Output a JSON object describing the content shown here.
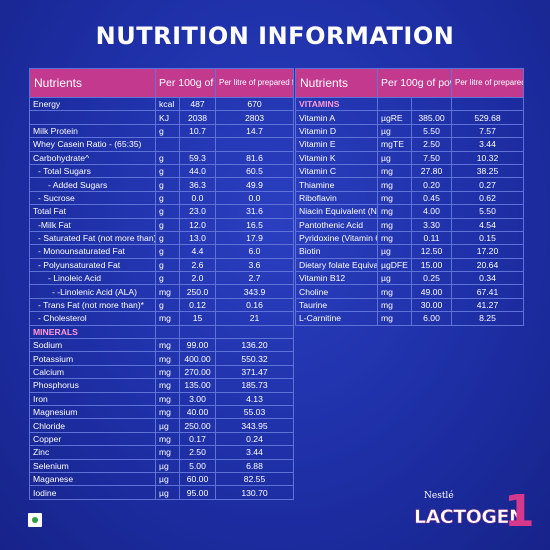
{
  "title": "NUTRITION INFORMATION",
  "table_headers": {
    "nutrients": "Nutrients",
    "per_powder": "Per 100g of powder",
    "per_formula": "Per litre of prepared formula"
  },
  "left_table": {
    "rows": [
      {
        "name": "Energy",
        "unit": "kcal",
        "powder": "487",
        "formula": "670",
        "style": ""
      },
      {
        "name": "",
        "unit": "KJ",
        "powder": "2038",
        "formula": "2803",
        "style": ""
      },
      {
        "name": "Milk Protein",
        "unit": "g",
        "powder": "10.7",
        "formula": "14.7",
        "style": ""
      },
      {
        "name": "Whey Casein Ratio - (65:35)",
        "unit": "",
        "powder": "",
        "formula": "",
        "style": ""
      },
      {
        "name": "Carbohydrate^",
        "unit": "g",
        "powder": "59.3",
        "formula": "81.6",
        "style": ""
      },
      {
        "name": "- Total Sugars",
        "unit": "g",
        "powder": "44.0",
        "formula": "60.5",
        "style": "l1"
      },
      {
        "name": "- Added Sugars",
        "unit": "g",
        "powder": "36.3",
        "formula": "49.9",
        "style": "l3"
      },
      {
        "name": "- Sucrose",
        "unit": "g",
        "powder": "0.0",
        "formula": "0.0",
        "style": "l1"
      },
      {
        "name": "Total Fat",
        "unit": "g",
        "powder": "23.0",
        "formula": "31.6",
        "style": ""
      },
      {
        "name": "-Milk Fat",
        "unit": "g",
        "powder": "12.0",
        "formula": "16.5",
        "style": "l1"
      },
      {
        "name": "- Saturated Fat (not more than)",
        "unit": "g",
        "powder": "13.0",
        "formula": "17.9",
        "style": "l1"
      },
      {
        "name": "- Monounsaturated Fat",
        "unit": "g",
        "powder": "4.4",
        "formula": "6.0",
        "style": "l1"
      },
      {
        "name": "- Polyunsaturated Fat",
        "unit": "g",
        "powder": "2.6",
        "formula": "3.6",
        "style": "l1"
      },
      {
        "name": "- Linoleic Acid",
        "unit": "g",
        "powder": "2.0",
        "formula": "2.7",
        "style": "l3"
      },
      {
        "name": "- -Linolenic Acid (ALA)",
        "unit": "mg",
        "powder": "250.0",
        "formula": "343.9",
        "style": "l4"
      },
      {
        "name": "- Trans Fat (not more than)*",
        "unit": "g",
        "powder": "0.12",
        "formula": "0.16",
        "style": "l1"
      },
      {
        "name": "- Cholesterol",
        "unit": "mg",
        "powder": "15",
        "formula": "21",
        "style": "l1"
      },
      {
        "name": "MINERALS",
        "unit": "",
        "powder": "",
        "formula": "",
        "style": "sec"
      },
      {
        "name": "Sodium",
        "unit": "mg",
        "powder": "99.00",
        "formula": "136.20",
        "style": ""
      },
      {
        "name": "Potassium",
        "unit": "mg",
        "powder": "400.00",
        "formula": "550.32",
        "style": ""
      },
      {
        "name": "Calcium",
        "unit": "mg",
        "powder": "270.00",
        "formula": "371.47",
        "style": ""
      },
      {
        "name": "Phosphorus",
        "unit": "mg",
        "powder": "135.00",
        "formula": "185.73",
        "style": ""
      },
      {
        "name": "Iron",
        "unit": "mg",
        "powder": "3.00",
        "formula": "4.13",
        "style": ""
      },
      {
        "name": "Magnesium",
        "unit": "mg",
        "powder": "40.00",
        "formula": "55.03",
        "style": ""
      },
      {
        "name": "Chloride",
        "unit": "µg",
        "powder": "250.00",
        "formula": "343.95",
        "style": ""
      },
      {
        "name": "Copper",
        "unit": "mg",
        "powder": "0.17",
        "formula": "0.24",
        "style": ""
      },
      {
        "name": "Zinc",
        "unit": "mg",
        "powder": "2.50",
        "formula": "3.44",
        "style": ""
      },
      {
        "name": "Selenium",
        "unit": "µg",
        "powder": "5.00",
        "formula": "6.88",
        "style": ""
      },
      {
        "name": "Maganese",
        "unit": "µg",
        "powder": "60.00",
        "formula": "82.55",
        "style": ""
      },
      {
        "name": "Iodine",
        "unit": "µg",
        "powder": "95.00",
        "formula": "130.70",
        "style": ""
      }
    ]
  },
  "right_table": {
    "rows": [
      {
        "name": "VITAMINS",
        "unit": "",
        "powder": "",
        "formula": "",
        "style": "sec"
      },
      {
        "name": "Vitamin A",
        "unit": "µgRE",
        "powder": "385.00",
        "formula": "529.68",
        "style": ""
      },
      {
        "name": "Vitamin D",
        "unit": "µg",
        "powder": "5.50",
        "formula": "7.57",
        "style": ""
      },
      {
        "name": "Vitamin E",
        "unit": "mgTE",
        "powder": "2.50",
        "formula": "3.44",
        "style": ""
      },
      {
        "name": "Vitamin K",
        "unit": "µg",
        "powder": "7.50",
        "formula": "10.32",
        "style": ""
      },
      {
        "name": "Vitamin C",
        "unit": "mg",
        "powder": "27.80",
        "formula": "38.25",
        "style": ""
      },
      {
        "name": "Thiamine",
        "unit": "mg",
        "powder": "0.20",
        "formula": "0.27",
        "style": ""
      },
      {
        "name": "Riboflavin",
        "unit": "mg",
        "powder": "0.45",
        "formula": "0.62",
        "style": ""
      },
      {
        "name": "Niacin Equivalent (Niacin)",
        "unit": "mg",
        "powder": "4.00",
        "formula": "5.50",
        "style": "tall"
      },
      {
        "name": "Pantothenic Acid",
        "unit": "mg",
        "powder": "3.30",
        "formula": "4.54",
        "style": ""
      },
      {
        "name": "Pyridoxine (Vitamin 6)",
        "unit": "mg",
        "powder": "0.11",
        "formula": "0.15",
        "style": ""
      },
      {
        "name": "Biotin",
        "unit": "µg",
        "powder": "12.50",
        "formula": "17.20",
        "style": ""
      },
      {
        "name": "Dietary folate Equivalent",
        "unit": "µgDFE",
        "powder": "15.00",
        "formula": "20.64",
        "style": "tall"
      },
      {
        "name": "Vitamin B12",
        "unit": "µg",
        "powder": "0.25",
        "formula": "0.34",
        "style": ""
      },
      {
        "name": "Choline",
        "unit": "mg",
        "powder": "49.00",
        "formula": "67.41",
        "style": ""
      },
      {
        "name": "Taurine",
        "unit": "mg",
        "powder": "30.00",
        "formula": "41.27",
        "style": ""
      },
      {
        "name": "L-Carnitine",
        "unit": "mg",
        "powder": "6.00",
        "formula": "8.25",
        "style": ""
      }
    ]
  },
  "logo": {
    "brand_parent": "Nestlé",
    "brand_name": "LACTOGEN",
    "stage": "1"
  },
  "colors": {
    "background": "#1e2fa6",
    "header": "#c2398e",
    "section_label": "#ff9ad6",
    "table_border": "#5e72d8",
    "stage_number": "#d6388c",
    "veg_mark": "#2e9e3a"
  }
}
